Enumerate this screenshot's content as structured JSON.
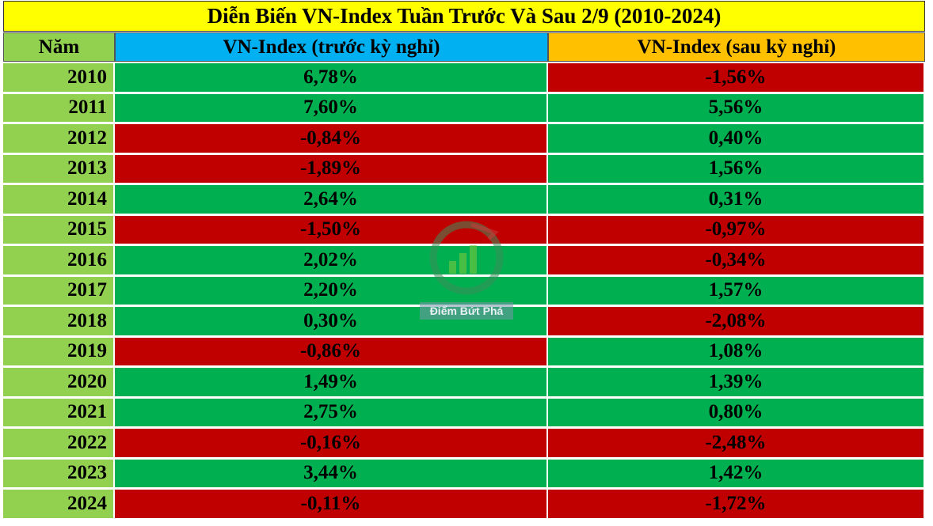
{
  "title": "Diễn Biến VN-Index Tuần Trước Và Sau 2/9 (2010-2024)",
  "header": [
    "Năm",
    "VN-Index (trước kỳ nghỉ)",
    "VN-Index (sau kỳ nghỉ)"
  ],
  "rows": [
    [
      "2010",
      "6,78%",
      "-1,56%"
    ],
    [
      "2011",
      "7,60%",
      "5,56%"
    ],
    [
      "2012",
      "-0,84%",
      "0,40%"
    ],
    [
      "2013",
      "-1,89%",
      "1,56%"
    ],
    [
      "2014",
      "2,64%",
      "0,31%"
    ],
    [
      "2015",
      "-1,50%",
      "-0,97%"
    ],
    [
      "2016",
      "2,02%",
      "-0,34%"
    ],
    [
      "2017",
      "2,20%",
      "1,57%"
    ],
    [
      "2018",
      "0,30%",
      "-2,08%"
    ],
    [
      "2019",
      "-0,86%",
      "1,08%"
    ],
    [
      "2020",
      "1,49%",
      "1,39%"
    ],
    [
      "2021",
      "2,75%",
      "0,80%"
    ],
    [
      "2022",
      "-0,16%",
      "-2,48%"
    ],
    [
      "2023",
      "3,44%",
      "1,42%"
    ],
    [
      "2024",
      "-0,11%",
      "-1,72%"
    ]
  ],
  "watermark": "Điểm Bứt Phá"
}
